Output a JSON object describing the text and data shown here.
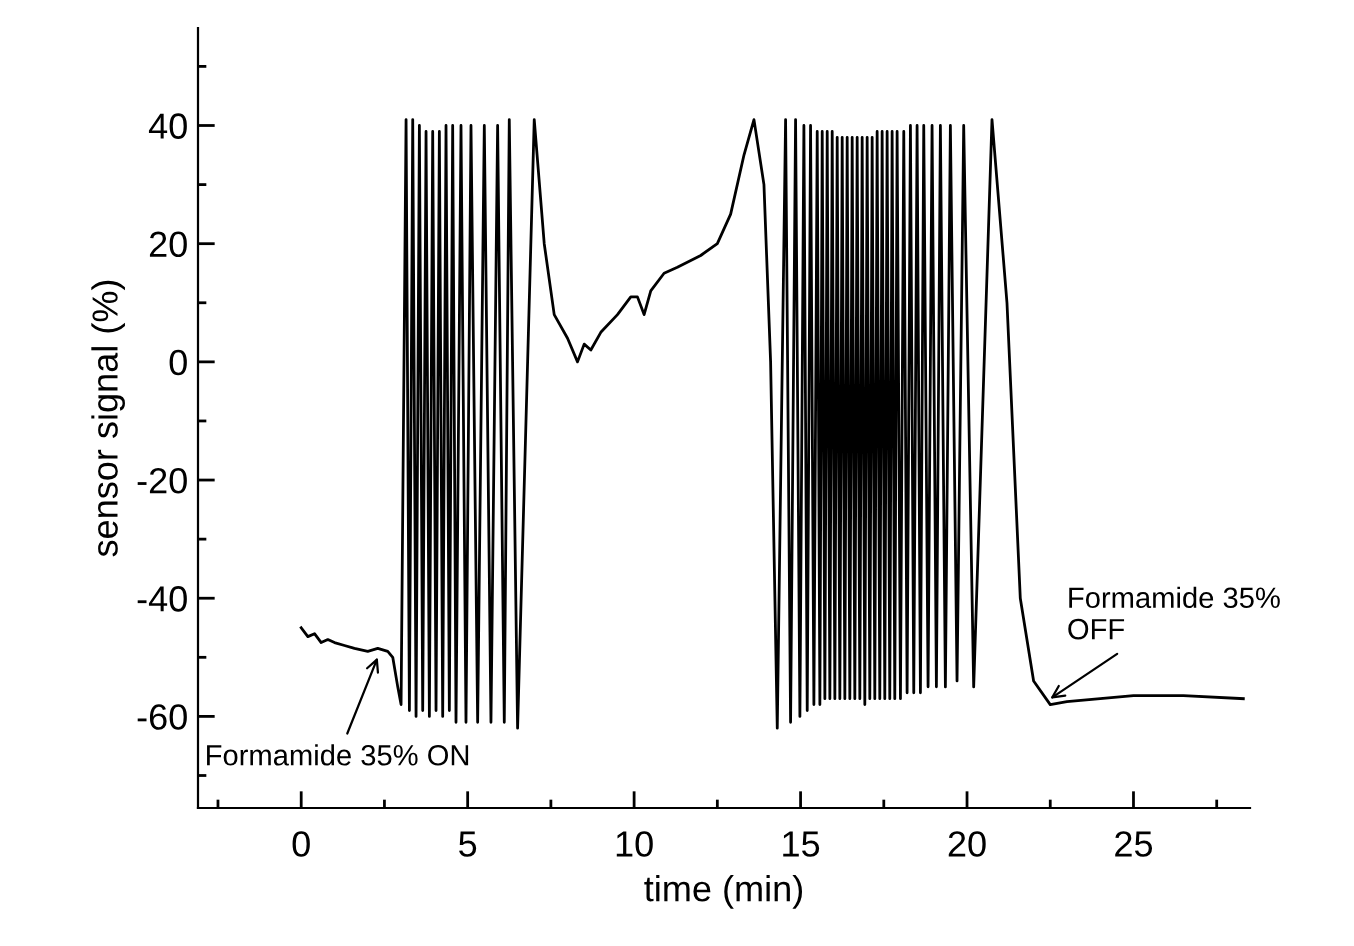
{
  "chart_data": {
    "type": "line",
    "xlabel": "time (min)",
    "ylabel": "sensor signal (%)",
    "xlim": [
      -3.1,
      28.5
    ],
    "ylim": [
      -75.5,
      56.5
    ],
    "xticks": [
      {
        "value": -2.5,
        "label": null
      },
      0,
      {
        "value": 2.5,
        "label": null
      },
      5,
      {
        "value": 7.5,
        "label": null
      },
      10,
      {
        "value": 12.5,
        "label": null
      },
      15,
      {
        "value": 17.5,
        "label": null
      },
      20,
      {
        "value": 22.5,
        "label": null
      },
      25,
      {
        "value": 27.5,
        "label": null
      }
    ],
    "yticks": [
      {
        "value": -70,
        "label": null
      },
      -60,
      {
        "value": -50,
        "label": null
      },
      -40,
      {
        "value": -30,
        "label": null
      },
      -20,
      {
        "value": -10,
        "label": null
      },
      0,
      {
        "value": 10,
        "label": null
      },
      20,
      {
        "value": 30,
        "label": null
      },
      40,
      {
        "value": 50,
        "label": null
      }
    ],
    "grid": false,
    "marker": "none",
    "line_style": "solid",
    "series": [
      {
        "color": "#000000",
        "x": [
          0,
          0.2,
          0.4,
          0.6,
          0.8,
          1.0,
          1.3,
          1.6,
          2.0,
          2.3,
          2.6,
          2.75,
          2.9,
          3.0,
          3.15,
          3.25,
          3.35,
          3.45,
          3.55,
          3.65,
          3.75,
          3.85,
          3.95,
          4.05,
          4.15,
          4.25,
          4.35,
          4.45,
          4.55,
          4.65,
          4.8,
          4.95,
          5.1,
          5.3,
          5.5,
          5.7,
          5.9,
          6.1,
          6.25,
          6.5,
          7.0,
          7.3,
          7.6,
          8.0,
          8.3,
          8.5,
          8.7,
          9.0,
          9.5,
          9.9,
          10.1,
          10.3,
          10.5,
          10.9,
          11.3,
          12.0,
          12.5,
          12.9,
          13.3,
          13.6,
          13.9,
          14.1,
          14.3,
          14.55,
          14.7,
          14.85,
          14.98,
          15.1,
          15.2,
          15.3,
          15.4,
          15.5,
          15.58,
          15.65,
          15.73,
          15.8,
          15.88,
          15.95,
          16.03,
          16.1,
          16.18,
          16.25,
          16.33,
          16.4,
          16.48,
          16.55,
          16.63,
          16.7,
          16.78,
          16.85,
          16.93,
          17.0,
          17.08,
          17.15,
          17.23,
          17.3,
          17.38,
          17.45,
          17.53,
          17.6,
          17.68,
          17.75,
          17.83,
          17.9,
          18.0,
          18.1,
          18.2,
          18.3,
          18.4,
          18.5,
          18.6,
          18.7,
          18.83,
          18.95,
          19.08,
          19.2,
          19.35,
          19.5,
          19.7,
          19.9,
          20.2,
          20.75,
          21.2,
          21.6,
          22.0,
          22.5,
          23.0,
          24.0,
          25.0,
          26.5,
          28.3
        ],
        "values": [
          -45,
          -46.5,
          -46,
          -47.5,
          -47,
          -47.5,
          -48,
          -48.5,
          -49,
          -48.5,
          -49,
          -50,
          -55,
          -58,
          41,
          -59,
          41,
          -60,
          40,
          -59,
          39,
          -60,
          39,
          -59,
          39,
          -60,
          40,
          -59,
          40,
          -61,
          40,
          -61,
          40,
          -61,
          40,
          -61,
          40,
          -61,
          41,
          -62,
          41,
          20,
          8,
          4,
          0,
          3,
          2,
          5,
          8,
          11,
          11,
          8,
          12,
          15,
          16,
          18,
          20,
          25,
          35,
          41,
          30,
          0,
          -62,
          41,
          -61,
          41,
          -60,
          40,
          -59,
          40,
          -58,
          39,
          -58,
          39,
          -57,
          39,
          -57,
          39,
          -57,
          38,
          -57,
          38,
          -57,
          38,
          -57,
          38,
          -57,
          38,
          -57,
          38,
          -58,
          38,
          -57,
          38,
          -57,
          39,
          -57,
          39,
          -57,
          39,
          -57,
          39,
          -57,
          39,
          -57,
          39,
          -56,
          40,
          -56,
          40,
          -56,
          40,
          -55,
          40,
          -55,
          40,
          -55,
          40,
          -54,
          40,
          -55,
          41,
          10,
          -40,
          -54,
          -58,
          -57.5,
          -57,
          -56.5,
          -56.5,
          -57
        ]
      }
    ],
    "annotations": [
      {
        "text": "Formamide 35% ON",
        "x": 2.3,
        "y": -50
      },
      {
        "text": "Formamide 35%\nOFF",
        "x": 22.5,
        "y": -57
      }
    ]
  }
}
